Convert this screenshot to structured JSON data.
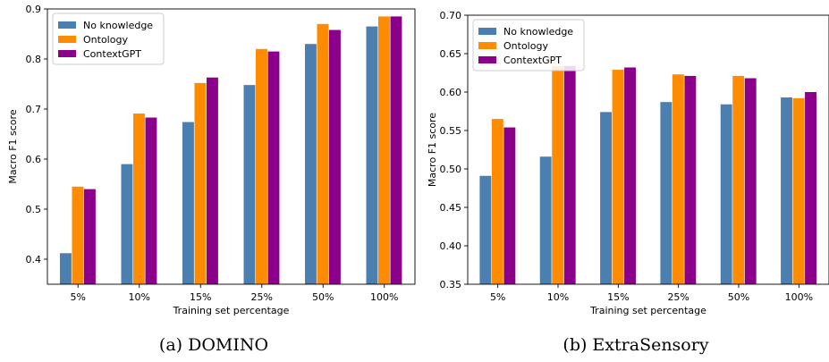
{
  "chart_data": [
    {
      "type": "bar",
      "subcaption": "(a) DOMINO",
      "xlabel": "Training set percentage",
      "ylabel": "Macro F1 score",
      "categories": [
        "5%",
        "10%",
        "15%",
        "25%",
        "50%",
        "100%"
      ],
      "ylim": [
        0.35,
        0.9
      ],
      "yticks": [
        "0.4",
        "0.5",
        "0.6",
        "0.7",
        "0.8",
        "0.9"
      ],
      "legend_position": "top-left",
      "grid": false,
      "series": [
        {
          "name": "No knowledge",
          "color": "#4a7fb0",
          "values": [
            0.412,
            0.59,
            0.674,
            0.748,
            0.83,
            0.865
          ]
        },
        {
          "name": "Ontology",
          "color": "#ff8c00",
          "values": [
            0.545,
            0.691,
            0.752,
            0.82,
            0.87,
            0.885
          ]
        },
        {
          "name": "ContextGPT",
          "color": "#8b008b",
          "values": [
            0.54,
            0.683,
            0.763,
            0.815,
            0.858,
            0.885
          ]
        }
      ]
    },
    {
      "type": "bar",
      "subcaption": "(b) ExtraSensory",
      "xlabel": "Training set percentage",
      "ylabel": "Macro F1 score",
      "categories": [
        "5%",
        "10%",
        "15%",
        "25%",
        "50%",
        "100%"
      ],
      "ylim": [
        0.35,
        0.7
      ],
      "yticks": [
        "0.35",
        "0.40",
        "0.45",
        "0.50",
        "0.55",
        "0.60",
        "0.65",
        "0.70"
      ],
      "legend_position": "top-left",
      "grid": false,
      "series": [
        {
          "name": "No knowledge",
          "color": "#4a7fb0",
          "values": [
            0.491,
            0.516,
            0.574,
            0.587,
            0.584,
            0.593
          ]
        },
        {
          "name": "Ontology",
          "color": "#ff8c00",
          "values": [
            0.565,
            0.634,
            0.629,
            0.623,
            0.621,
            0.592
          ]
        },
        {
          "name": "ContextGPT",
          "color": "#8b008b",
          "values": [
            0.554,
            0.634,
            0.632,
            0.621,
            0.618,
            0.6
          ]
        }
      ]
    }
  ]
}
